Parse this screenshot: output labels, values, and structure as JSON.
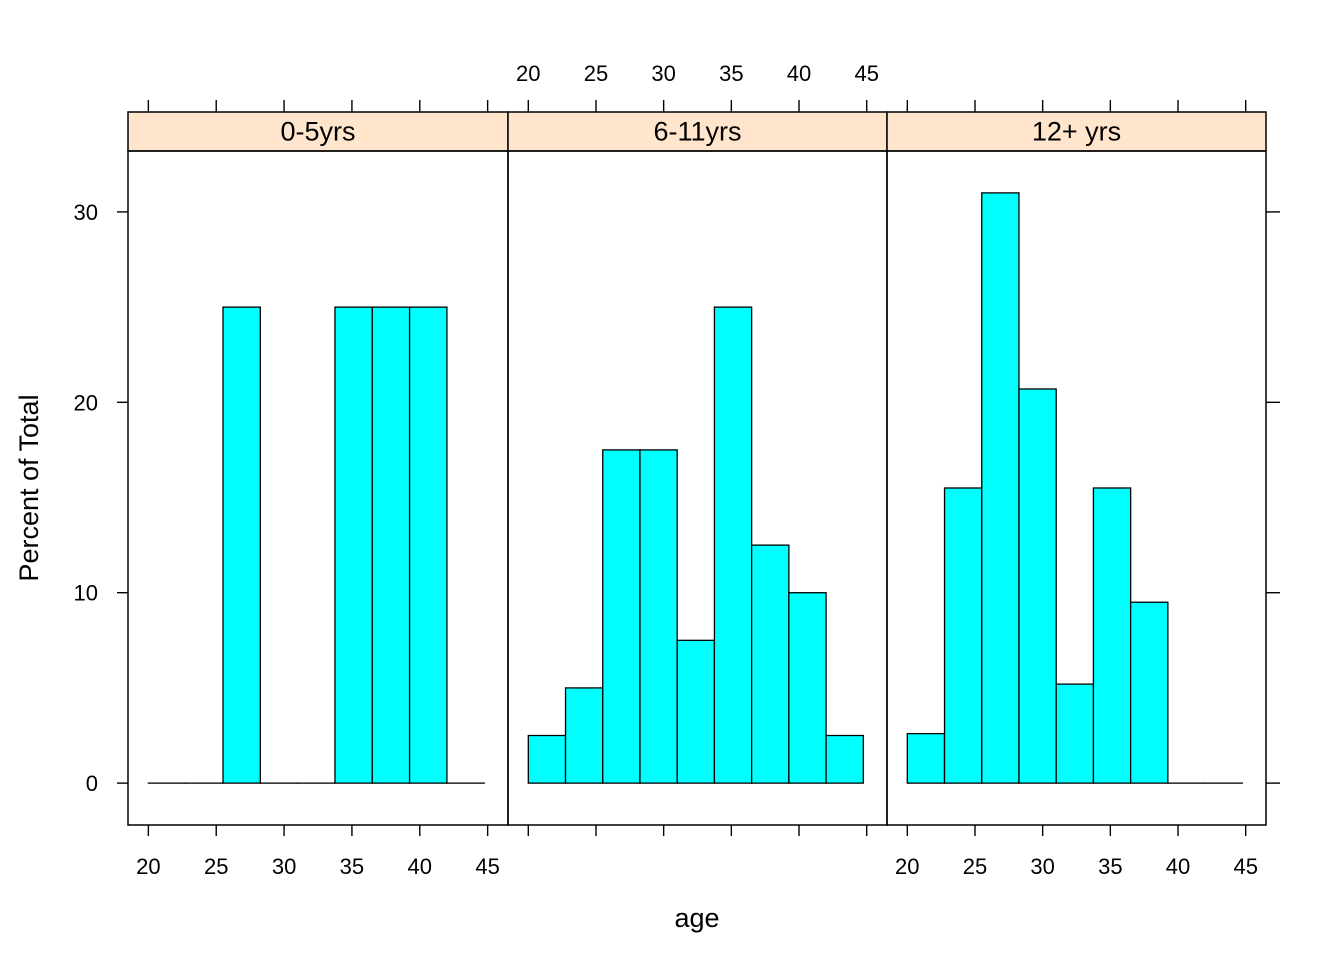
{
  "chart_data": {
    "type": "bar",
    "subtype": "histogram-trellis",
    "xlabel": "age",
    "ylabel": "Percent of Total",
    "xlim": [
      18.5,
      46.5
    ],
    "ylim": [
      -2.2,
      33.2
    ],
    "x_ticks": [
      "20",
      "25",
      "30",
      "35",
      "40",
      "45"
    ],
    "y_ticks": [
      "0",
      "10",
      "20",
      "30"
    ],
    "bar_color": "#00ffff",
    "strip_color": "#ffe5cc",
    "panels": [
      {
        "label": "0-5yrs",
        "bin_edges": [
          20.0,
          22.75,
          25.5,
          28.25,
          31.0,
          33.75,
          36.5,
          39.25,
          42.0,
          44.75
        ],
        "values": [
          0,
          0,
          25,
          0,
          0,
          25,
          25,
          25,
          0
        ]
      },
      {
        "label": "6-11yrs",
        "bin_edges": [
          20.0,
          22.75,
          25.5,
          28.25,
          31.0,
          33.75,
          36.5,
          39.25,
          42.0,
          44.75
        ],
        "values": [
          2.5,
          5,
          17.5,
          17.5,
          7.5,
          25,
          12.5,
          10,
          2.5
        ]
      },
      {
        "label": "12+ yrs",
        "bin_edges": [
          20.0,
          22.75,
          25.5,
          28.25,
          31.0,
          33.75,
          36.5,
          39.25,
          42.0,
          44.75
        ],
        "values": [
          2.6,
          15.5,
          31,
          20.7,
          5.2,
          15.5,
          9.5,
          0,
          0
        ]
      }
    ]
  }
}
